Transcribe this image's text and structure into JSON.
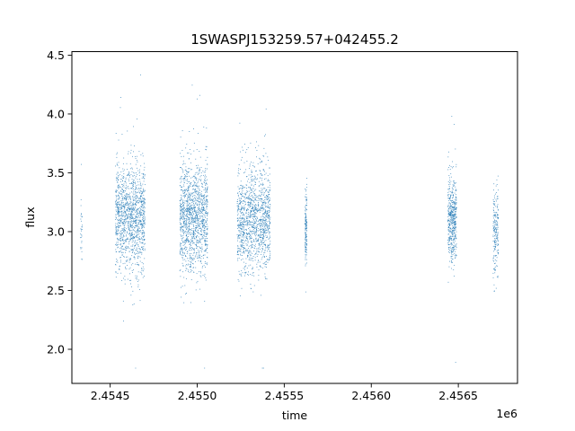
{
  "chart_data": {
    "type": "scatter",
    "title": "1SWASPJ153259.57+042455.2",
    "xlabel": "time",
    "ylabel": "flux",
    "x_offset_label": "1e6",
    "xlim": [
      2454280,
      2456840
    ],
    "ylim": [
      1.71,
      4.53
    ],
    "x_ticks": [
      2454500,
      2455000,
      2455500,
      2456000,
      2456500
    ],
    "x_tick_labels": [
      "2.4545",
      "2.4550",
      "2.4555",
      "2.4560",
      "2.4565"
    ],
    "y_ticks": [
      2.0,
      2.5,
      3.0,
      3.5,
      4.0,
      4.5
    ],
    "y_tick_labels": [
      "2.0",
      "2.5",
      "3.0",
      "3.5",
      "4.0",
      "4.5"
    ],
    "grid": false,
    "marker_color": "#1f77b4",
    "series": [
      {
        "clusters": [
          {
            "x_start": 2454330,
            "x_end": 2454340,
            "center": 3.05,
            "spread": 0.18,
            "count": 30
          },
          {
            "x_start": 2454530,
            "x_end": 2454700,
            "center": 3.12,
            "spread": 0.22,
            "count": 1300
          },
          {
            "x_start": 2454900,
            "x_end": 2455060,
            "center": 3.12,
            "spread": 0.23,
            "count": 1300
          },
          {
            "x_start": 2455230,
            "x_end": 2455420,
            "center": 3.1,
            "spread": 0.22,
            "count": 1300
          },
          {
            "x_start": 2455620,
            "x_end": 2455630,
            "center": 3.05,
            "spread": 0.16,
            "count": 150
          },
          {
            "x_start": 2456440,
            "x_end": 2456490,
            "center": 3.1,
            "spread": 0.18,
            "count": 500
          },
          {
            "x_start": 2456700,
            "x_end": 2456730,
            "center": 3.0,
            "spread": 0.18,
            "count": 200
          }
        ]
      }
    ]
  }
}
